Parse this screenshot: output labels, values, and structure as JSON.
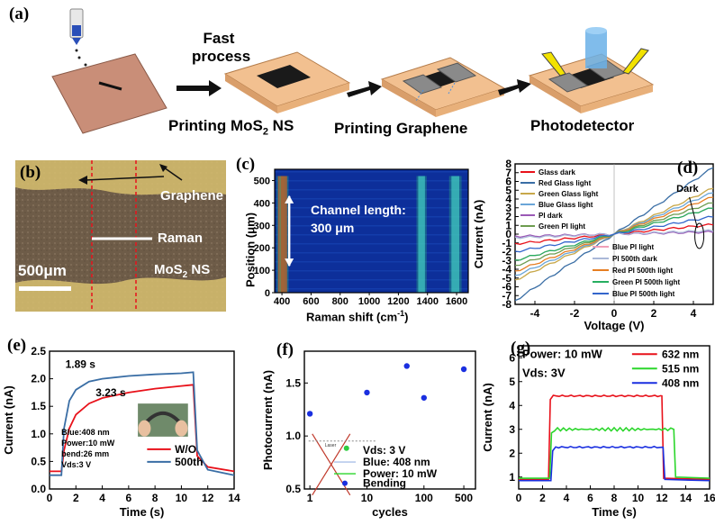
{
  "panel_labels": [
    "(a)",
    "(b)",
    "(c)",
    "(d)",
    "(e)",
    "(f)",
    "(g)"
  ],
  "a": {
    "fast_process": "Fast process",
    "step_mos2": "Printing MoS",
    "mos2_sub": "2",
    "mos2_suffix": " NS",
    "step_graphene": "Printing Graphene",
    "step_photodetector": "Photodetector"
  },
  "b": {
    "graphene": "Graphene",
    "raman": "Raman",
    "mos2": "MoS",
    "mos2_sub": "2",
    "mos2_suffix": " NS",
    "scalebar": "500μm"
  },
  "c": {
    "ylabel": "Position (μm)",
    "xlabel": "Raman shift (cm",
    "xlabel_sup": "-1",
    "xlabel_end": ")",
    "annot1": "Channel length:",
    "annot2": "300 μm"
  },
  "colors": {
    "red": "#e8111a",
    "blue": "#1a2fe0",
    "green": "#2bd62b",
    "steel": "#3a6ea5",
    "heat_bg": "#0d2f9a",
    "heat_band": "#2f7fe0",
    "heat_hot": "#e43010"
  },
  "chart_data": [
    {
      "id": "c",
      "type": "heatmap",
      "xlabel": "Raman shift (cm-1)",
      "ylabel": "Position (μm)",
      "xlim": [
        350,
        1680
      ],
      "ylim": [
        0,
        550
      ],
      "x_ticks": [
        400,
        600,
        800,
        1000,
        1200,
        1400,
        1600
      ],
      "y_ticks": [
        0,
        100,
        200,
        300,
        400,
        500
      ],
      "bands": [
        {
          "center": 385,
          "width": 12,
          "intensity": "high"
        },
        {
          "center": 405,
          "width": 12,
          "intensity": "high"
        },
        {
          "center": 1350,
          "width": 14,
          "intensity": "medium"
        },
        {
          "center": 1582,
          "width": 18,
          "intensity": "medium"
        }
      ],
      "channel_length_um": 300
    },
    {
      "id": "d",
      "type": "line",
      "xlabel": "Voltage (V)",
      "ylabel": "Current (nA)",
      "xlim": [
        -5,
        5
      ],
      "ylim": [
        -8,
        8
      ],
      "x_ticks": [
        -4,
        -2,
        0,
        2,
        4
      ],
      "y_ticks": [
        -8,
        -7,
        -6,
        -5,
        -4,
        -3,
        -2,
        -1,
        0,
        1,
        2,
        3,
        4,
        5,
        6,
        7,
        8
      ],
      "annotation": "Dark",
      "legend_left": [
        "Glass dark",
        "Red Glass light",
        "Green Glass light",
        "Blue Glass light",
        "PI dark",
        "Green PI light"
      ],
      "legend_right": [
        "Blue PI light",
        "PI 500th dark",
        "Red PI 500th light",
        "Green PI 500th light",
        "Blue PI 500th light"
      ],
      "series": [
        {
          "name": "Glass dark",
          "color": "#e8111a",
          "slope": 0.22
        },
        {
          "name": "Red Glass light",
          "color": "#3a6ea5",
          "slope": 1.52
        },
        {
          "name": "Green Glass light",
          "color": "#c8a84a",
          "slope": 1.05
        },
        {
          "name": "Blue Glass light",
          "color": "#6aa5d8",
          "slope": 0.95
        },
        {
          "name": "PI dark",
          "color": "#9b59b6",
          "slope": 0.05
        },
        {
          "name": "Green PI light",
          "color": "#6d9c4f",
          "slope": 0.72
        },
        {
          "name": "Blue PI light",
          "color": "#f0a0b8",
          "slope": 0.6
        },
        {
          "name": "PI 500th dark",
          "color": "#aab8d8",
          "slope": 0.08
        },
        {
          "name": "Red PI 500th light",
          "color": "#e67e22",
          "slope": 0.85
        },
        {
          "name": "Green PI 500th light",
          "color": "#27ae60",
          "slope": 0.6
        },
        {
          "name": "Blue PI 500th light",
          "color": "#3366cc",
          "slope": 0.4
        }
      ]
    },
    {
      "id": "e",
      "type": "line",
      "xlabel": "Time (s)",
      "ylabel": "Current (nA)",
      "xlim": [
        0,
        14
      ],
      "ylim": [
        0,
        2.5
      ],
      "x_ticks": [
        0,
        2,
        4,
        6,
        8,
        10,
        12,
        14
      ],
      "y_ticks": [
        0.0,
        0.5,
        1.0,
        1.5,
        2.0,
        2.5
      ],
      "annotations": [
        "1.89 s",
        "3.23 s",
        "Blue:408 nm",
        "Power:10 mW",
        "bend:26 mm",
        "Vds:3 V"
      ],
      "series": [
        {
          "name": "W/O",
          "color": "#e8111a",
          "x": [
            0,
            0.9,
            1.1,
            1.5,
            2,
            3,
            4,
            6,
            8,
            10,
            10.9,
            11.2,
            12,
            14
          ],
          "y": [
            0.32,
            0.32,
            0.7,
            1.1,
            1.35,
            1.55,
            1.65,
            1.75,
            1.82,
            1.87,
            1.89,
            0.6,
            0.4,
            0.32
          ]
        },
        {
          "name": "500th",
          "color": "#3a6ea5",
          "x": [
            0,
            0.9,
            1.1,
            1.5,
            2,
            3,
            4,
            6,
            8,
            10,
            10.9,
            11.2,
            12,
            14
          ],
          "y": [
            0.25,
            0.25,
            1.1,
            1.6,
            1.8,
            1.95,
            2.0,
            2.05,
            2.08,
            2.1,
            2.12,
            0.7,
            0.35,
            0.25
          ]
        }
      ]
    },
    {
      "id": "f",
      "type": "scatter",
      "xlabel": "cycles",
      "ylabel": "Photocurrent (nA)",
      "xscale": "log",
      "xlim": [
        0.8,
        800
      ],
      "ylim": [
        0.5,
        1.8
      ],
      "x_ticks": [
        1,
        10,
        100,
        500
      ],
      "y_ticks": [
        0.5,
        1.0,
        1.5
      ],
      "legend": [
        "Vds: 3 V",
        "Blue: 408 nm",
        "Power: 10 mW",
        "Bending"
      ],
      "series": [
        {
          "name": "Bending",
          "color": "#1a2fe0",
          "x": [
            1,
            10,
            50,
            100,
            500
          ],
          "y": [
            1.21,
            1.41,
            1.66,
            1.36,
            1.63
          ]
        }
      ]
    },
    {
      "id": "g",
      "type": "line",
      "xlabel": "Time (s)",
      "ylabel": "Current (nA)",
      "xlim": [
        0,
        16
      ],
      "ylim": [
        0.5,
        6.5
      ],
      "x_ticks": [
        0,
        2,
        4,
        6,
        8,
        10,
        12,
        14,
        16
      ],
      "y_ticks": [
        1,
        2,
        3,
        4,
        5,
        6
      ],
      "annotations": [
        "Power: 10 mW",
        "Vds: 3V"
      ],
      "series": [
        {
          "name": "632 nm",
          "color": "#e8111a",
          "on": 2.5,
          "off": 12.0,
          "base": 0.9,
          "level": 4.4
        },
        {
          "name": "515 nm",
          "color": "#2bd62b",
          "on": 2.6,
          "off": 13.0,
          "base": 0.95,
          "level": 3.0
        },
        {
          "name": "408 nm",
          "color": "#1a2fe0",
          "on": 2.7,
          "off": 12.1,
          "base": 0.85,
          "level": 2.25
        }
      ]
    }
  ]
}
